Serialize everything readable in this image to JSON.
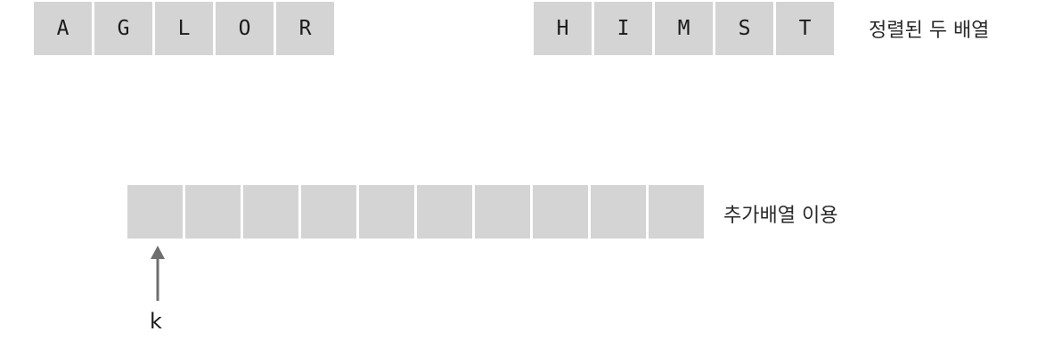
{
  "sorted_arrays": {
    "left": [
      "A",
      "G",
      "L",
      "O",
      "R"
    ],
    "right": [
      "H",
      "I",
      "M",
      "S",
      "T"
    ],
    "caption": "정렬된 두 배열"
  },
  "temp_array": {
    "cell_count": 10,
    "caption": "추가배열 이용"
  },
  "pointer": {
    "label": "k"
  }
}
